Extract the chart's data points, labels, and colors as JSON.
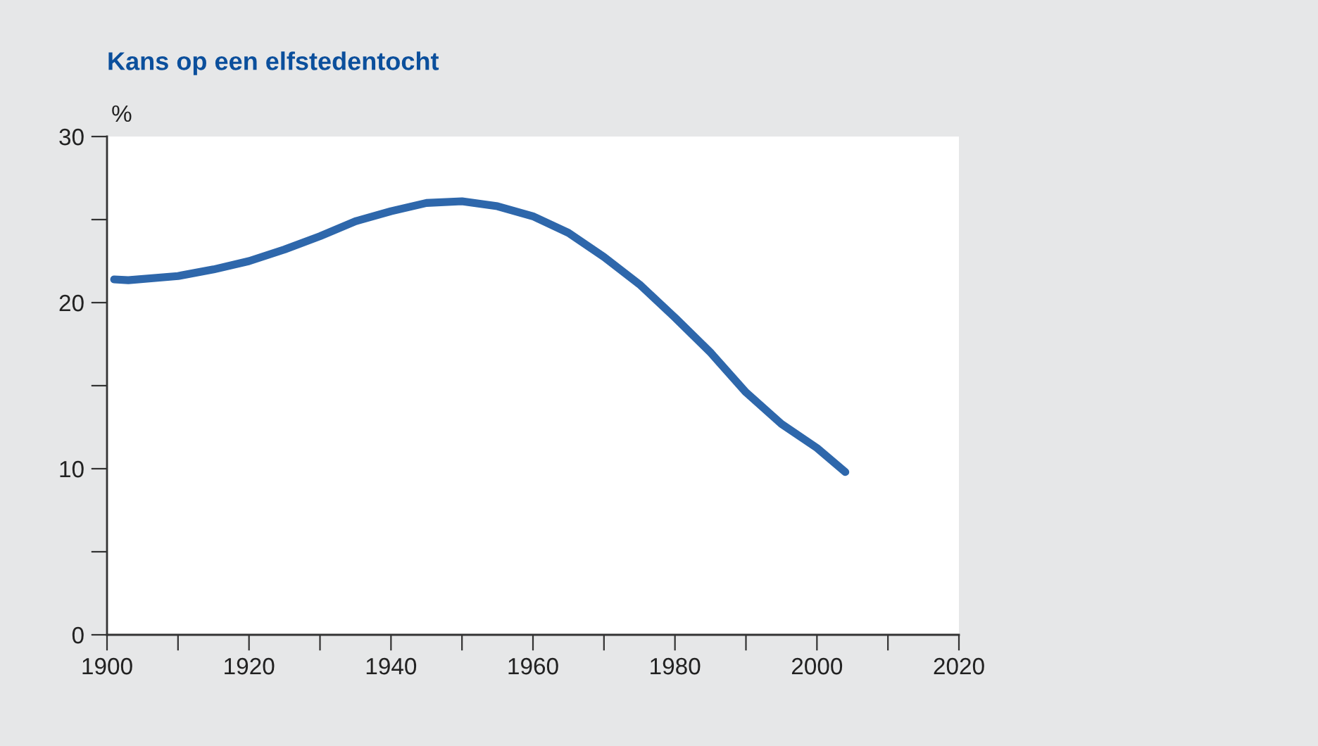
{
  "chart_data": {
    "type": "line",
    "title": "Kans op een elfstedentocht",
    "ylabel": "%",
    "x": [
      1901,
      1903,
      1910,
      1915,
      1920,
      1925,
      1930,
      1935,
      1940,
      1945,
      1950,
      1955,
      1960,
      1965,
      1970,
      1975,
      1980,
      1985,
      1990,
      1995,
      2000,
      2004
    ],
    "series": [
      {
        "color": "#2e67ab",
        "values": [
          21.4,
          21.35,
          21.6,
          22.0,
          22.5,
          23.2,
          24.0,
          24.9,
          25.5,
          26.0,
          26.1,
          25.8,
          25.2,
          24.2,
          22.75,
          21.1,
          19.1,
          17.0,
          14.6,
          12.7,
          11.25,
          9.8
        ]
      }
    ],
    "xlim": [
      1900,
      2020
    ],
    "ylim": [
      0,
      30
    ],
    "xticks": [
      1900,
      {
        "value": 1910,
        "label": null
      },
      1920,
      {
        "value": 1930,
        "label": null
      },
      1940,
      {
        "value": 1950,
        "label": null
      },
      1960,
      {
        "value": 1970,
        "label": null
      },
      1980,
      {
        "value": 1990,
        "label": null
      },
      2000,
      {
        "value": 2010,
        "label": null
      },
      2020
    ],
    "yticks": [
      0,
      {
        "value": 5,
        "label": null
      },
      10,
      {
        "value": 15,
        "label": null
      },
      20,
      {
        "value": 25,
        "label": null
      },
      30
    ],
    "grid": false,
    "legend": false,
    "marker": "none",
    "line_style": "solid"
  }
}
